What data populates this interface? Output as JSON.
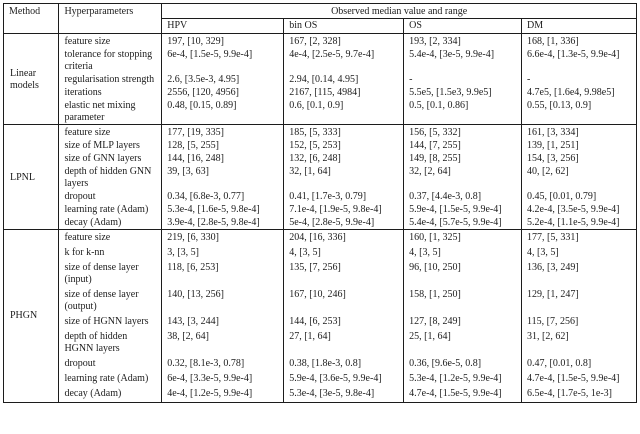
{
  "table": {
    "header": {
      "method_label": "Method",
      "hyperparameters_label": "Hyperparameters",
      "observed_label": "Observed median value and range",
      "dataset_columns": [
        "HPV",
        "bin OS",
        "OS",
        "DM"
      ]
    },
    "sections": [
      {
        "method": "Linear models",
        "rows": [
          {
            "name": "feature size",
            "values": [
              "197, [10, 329]",
              "167, [2, 328]",
              "193, [2, 334]",
              "168, [1, 336]"
            ]
          },
          {
            "name": "tolerance for stopping criteria",
            "values": [
              "6e-4, [1.5e-5, 9.9e-4]",
              "4e-4, [2.5e-5, 9.7e-4]",
              "5.4e-4, [3e-5, 9.9e-4]",
              "6.6e-4, [1.3e-5, 9.9e-4]"
            ]
          },
          {
            "name": "regularisation strength",
            "values": [
              "2.6, [3.5e-3, 4.95]",
              "2.94, [0.14, 4.95]",
              "-",
              "-"
            ]
          },
          {
            "name": "iterations",
            "values": [
              "2556, [120, 4956]",
              "2167, [115, 4984]",
              "5.5e5, [1.5e3, 9.9e5]",
              "4.7e5, [1.6e4, 9.98e5]"
            ]
          },
          {
            "name": "elastic net mixing parameter",
            "values": [
              "0.48, [0.15, 0.89]",
              "0.6, [0.1, 0.9]",
              "0.5, [0.1, 0.86]",
              "0.55, [0.13, 0.9]"
            ]
          }
        ]
      },
      {
        "method": "LPNL",
        "rows": [
          {
            "name": "feature size",
            "values": [
              "177, [19, 335]",
              "185, [5, 333]",
              "156, [5, 332]",
              "161, [3, 334]"
            ]
          },
          {
            "name": "size of MLP layers",
            "values": [
              "128, [5, 255]",
              "152, [5, 253]",
              "144, [7, 255]",
              "139, [1, 251]"
            ]
          },
          {
            "name": "size of GNN layers",
            "values": [
              "144, [16, 248]",
              "132, [6, 248]",
              "149, [8, 255]",
              "154, [3, 256]"
            ]
          },
          {
            "name": "depth of hidden GNN layers",
            "values": [
              "39, [3, 63]",
              "32, [1, 64]",
              "32, [2, 64]",
              "40, [2, 62]"
            ]
          },
          {
            "name": "dropout",
            "values": [
              "0.34, [6.8e-3, 0.77]",
              "0.41, [1.7e-3, 0.79]",
              "0.37, [4.4e-3, 0.8]",
              "0.45, [0.01, 0.79]"
            ]
          },
          {
            "name": "learning rate (Adam)",
            "values": [
              "5.3e-4, [1.6e-5, 9.8e-4]",
              "7.1e-4, [1.9e-5, 9.8e-4]",
              "5.9e-4, [1.5e-5, 9.9e-4]",
              "4.2e-4, [3.5e-5, 9.9e-4]"
            ]
          },
          {
            "name": "decay (Adam)",
            "values": [
              "3.9e-4, [2.8e-5, 9.8e-4]",
              "5e-4, [2.8e-5, 9.9e-4]",
              "5.4e-4, [5.7e-5, 9.9e-4]",
              "5.2e-4, [1.1e-5, 9.9e-4]"
            ]
          }
        ]
      },
      {
        "method": "PHGN",
        "rows": [
          {
            "name": "feature size",
            "values": [
              "219, [6, 330]",
              "204, [16, 336]",
              "160, [1, 325]",
              "177, [5, 331]"
            ]
          },
          {
            "name": "k for k-nn",
            "values": [
              "3, [3, 5]",
              "4, [3, 5]",
              "4, [3, 5]",
              "4, [3, 5]"
            ]
          },
          {
            "name": "size of dense layer (input)",
            "values": [
              "118, [6, 253]",
              "135, [7, 256]",
              "96, [10, 250]",
              "136, [3, 249]"
            ]
          },
          {
            "name": "size of dense layer (output)",
            "values": [
              "140, [13, 256]",
              "167, [10, 246]",
              "158, [1, 250]",
              "129, [1, 247]"
            ]
          },
          {
            "name": "size of HGNN layers",
            "values": [
              "143, [3, 244]",
              "144, [6, 253]",
              "127, [8, 249]",
              "115, [7, 256]"
            ]
          },
          {
            "name": "depth of hidden HGNN layers",
            "values": [
              "38, [2, 64]",
              "27, [1, 64]",
              "25, [1, 64]",
              "31, [2, 62]"
            ]
          },
          {
            "name": "dropout",
            "values": [
              "0.32, [8.1e-3, 0.78]",
              "0.38, [1.8e-3, 0.8]",
              "0.36, [9.6e-5, 0.8]",
              "0.47, [0.01, 0.8]"
            ]
          },
          {
            "name": "learning rate (Adam)",
            "values": [
              "6e-4, [3.3e-5, 9.9e-4]",
              "5.9e-4, [3.6e-5, 9.9e-4]",
              "5.3e-4, [1.2e-5, 9.9e-4]",
              "4.7e-4, [1.5e-5, 9.9e-4]"
            ]
          },
          {
            "name": "decay (Adam)",
            "values": [
              "4e-4, [1.2e-5, 9.9e-4]",
              "5.3e-4, [3e-5, 9.8e-4]",
              "4.7e-4, [1.5e-5, 9.9e-4]",
              "6.5e-4, [1.7e-5, 1e-3]"
            ]
          }
        ]
      }
    ]
  },
  "colors": {
    "border": "#1c1c1c",
    "text": "#1c1c1c",
    "background": "#ffffff"
  }
}
